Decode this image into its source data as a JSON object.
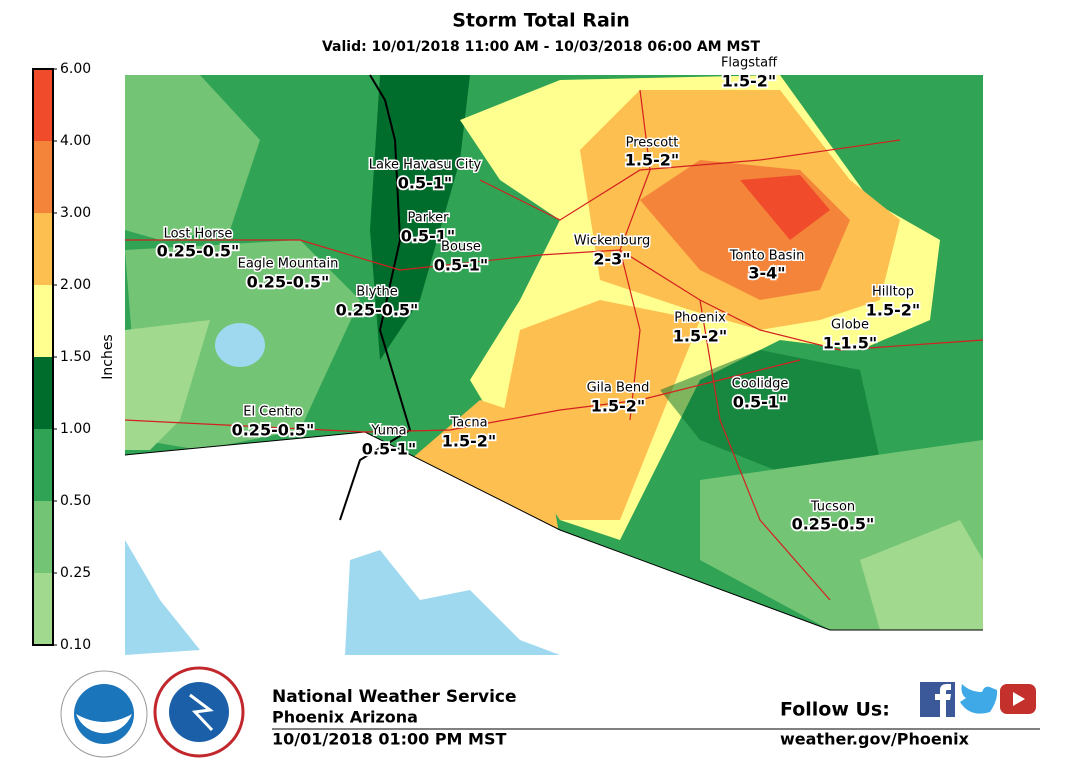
{
  "title": "Storm Total Rain",
  "subtitle": "Valid: 10/01/2018 11:00 AM - 10/03/2018 06:00 AM MST",
  "legend": {
    "label": "Inches",
    "ticks": [
      {
        "value": 0.1,
        "label": "0.10"
      },
      {
        "value": 0.25,
        "label": "0.25"
      },
      {
        "value": 0.5,
        "label": "0.50"
      },
      {
        "value": 1,
        "label": "1.00"
      },
      {
        "value": 1.5,
        "label": "1.50"
      },
      {
        "value": 2,
        "label": "2.00"
      },
      {
        "value": 3,
        "label": "3.00"
      },
      {
        "value": 4,
        "label": "4.00"
      },
      {
        "value": 6,
        "label": "6.00"
      }
    ],
    "colors": [
      "#a1d98e",
      "#74c476",
      "#31a354",
      "#006d2c",
      "#ffff8f",
      "#fdbf4f",
      "#f4843a",
      "#f04b2a"
    ]
  },
  "places": [
    {
      "name": "Flagstaff",
      "amount": "1.5-2\""
    },
    {
      "name": "Prescott",
      "amount": "1.5-2\""
    },
    {
      "name": "Lake Havasu City",
      "amount": "0.5-1\""
    },
    {
      "name": "Parker",
      "amount": "0.5-1\""
    },
    {
      "name": "Lost Horse",
      "amount": "0.25-0.5\""
    },
    {
      "name": "Wickenburg",
      "amount": "2-3\""
    },
    {
      "name": "Bouse",
      "amount": "0.5-1\""
    },
    {
      "name": "Eagle Mountain",
      "amount": "0.25-0.5\""
    },
    {
      "name": "Tonto Basin",
      "amount": "3-4\""
    },
    {
      "name": "Blythe",
      "amount": "0.25-0.5\""
    },
    {
      "name": "Hilltop",
      "amount": "1.5-2\""
    },
    {
      "name": "Phoenix",
      "amount": "1.5-2\""
    },
    {
      "name": "Globe",
      "amount": "1-1.5\""
    },
    {
      "name": "Coolidge",
      "amount": "0.5-1\""
    },
    {
      "name": "Gila Bend",
      "amount": "1.5-2\""
    },
    {
      "name": "El Centro",
      "amount": "0.25-0.5\""
    },
    {
      "name": "Tacna",
      "amount": "1.5-2\""
    },
    {
      "name": "Yuma",
      "amount": "0.5-1\""
    },
    {
      "name": "Tucson",
      "amount": "0.25-0.5\""
    }
  ],
  "footer": {
    "agency": "National Weather Service",
    "office": "Phoenix Arizona",
    "issued": "10/01/2018 01:00 PM MST",
    "follow": "Follow Us:",
    "url": "weather.gov/Phoenix"
  }
}
